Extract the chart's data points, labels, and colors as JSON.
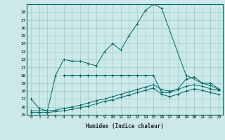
{
  "title": "",
  "xlabel": "Humidex (Indice chaleur)",
  "background_color": "#cce8e8",
  "grid_color": "#99cccc",
  "line_color": "#006666",
  "xlim": [
    -0.5,
    23.5
  ],
  "ylim": [
    15,
    29
  ],
  "xticks": [
    0,
    1,
    2,
    3,
    4,
    5,
    6,
    7,
    8,
    9,
    10,
    11,
    12,
    13,
    14,
    15,
    16,
    17,
    18,
    19,
    20,
    21,
    22,
    23
  ],
  "yticks": [
    15,
    16,
    17,
    18,
    19,
    20,
    21,
    22,
    23,
    24,
    25,
    26,
    27,
    28
  ],
  "series": [
    {
      "x": [
        0,
        1,
        2,
        3,
        4,
        5,
        6,
        7,
        8,
        9,
        10,
        11,
        12,
        13,
        14,
        15,
        16,
        19,
        21,
        22,
        23
      ],
      "y": [
        17,
        15.8,
        15.5,
        20.0,
        22.0,
        21.8,
        21.8,
        21.5,
        21.2,
        23.0,
        24.0,
        23.2,
        25.0,
        26.5,
        28.2,
        29.0,
        28.5,
        20.0,
        19.0,
        19.0,
        18.3
      ]
    },
    {
      "x": [
        4,
        5,
        6,
        7,
        8,
        9,
        10,
        11,
        12,
        13,
        14,
        15,
        16,
        17,
        18,
        19,
        20,
        21,
        22,
        23
      ],
      "y": [
        20.0,
        20.0,
        20.0,
        20.0,
        20.0,
        20.0,
        20.0,
        20.0,
        20.0,
        20.0,
        20.0,
        20.0,
        17.8,
        17.8,
        18.3,
        19.5,
        19.8,
        19.0,
        18.7,
        18.2
      ]
    },
    {
      "x": [
        0,
        1,
        2,
        3,
        4,
        5,
        6,
        7,
        8,
        9,
        10,
        11,
        12,
        13,
        14,
        15,
        16,
        17,
        18,
        19,
        20,
        21,
        22,
        23
      ],
      "y": [
        15.5,
        15.5,
        15.5,
        15.6,
        15.8,
        16.0,
        16.2,
        16.5,
        16.8,
        17.0,
        17.3,
        17.6,
        17.9,
        18.2,
        18.5,
        18.8,
        18.2,
        18.0,
        18.2,
        18.6,
        18.8,
        18.6,
        18.3,
        18.1
      ]
    },
    {
      "x": [
        0,
        1,
        2,
        3,
        4,
        5,
        6,
        7,
        8,
        9,
        10,
        11,
        12,
        13,
        14,
        15,
        16,
        17,
        18,
        19,
        20,
        21,
        22,
        23
      ],
      "y": [
        15.3,
        15.3,
        15.3,
        15.4,
        15.5,
        15.7,
        15.9,
        16.1,
        16.4,
        16.7,
        16.9,
        17.2,
        17.5,
        17.8,
        18.1,
        18.4,
        17.6,
        17.3,
        17.6,
        18.0,
        18.3,
        18.1,
        17.8,
        17.6
      ]
    }
  ]
}
